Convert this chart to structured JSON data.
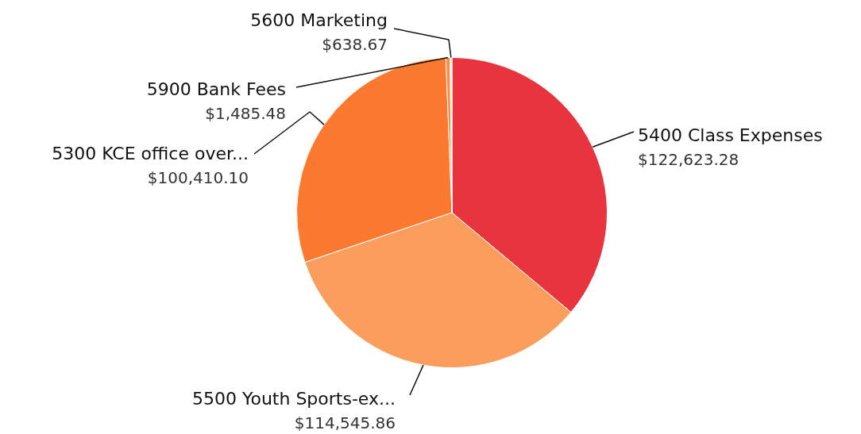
{
  "chart_data": {
    "type": "pie",
    "categories": [
      "5400 Class Expenses",
      "5500 Youth Sports-ex...",
      "5300 KCE office over...",
      "5900 Bank Fees",
      "5600 Marketing"
    ],
    "values": [
      122623.28,
      114545.86,
      100410.1,
      1485.48,
      638.67
    ],
    "colors": [
      "#e8343f",
      "#fb9d5c",
      "#fc7a30",
      "#fd8a3e",
      "#fdf0d8"
    ],
    "value_labels": [
      "$122,623.28",
      "$114,545.86",
      "$100,410.10",
      "$1,485.48",
      "$638.67"
    ]
  }
}
